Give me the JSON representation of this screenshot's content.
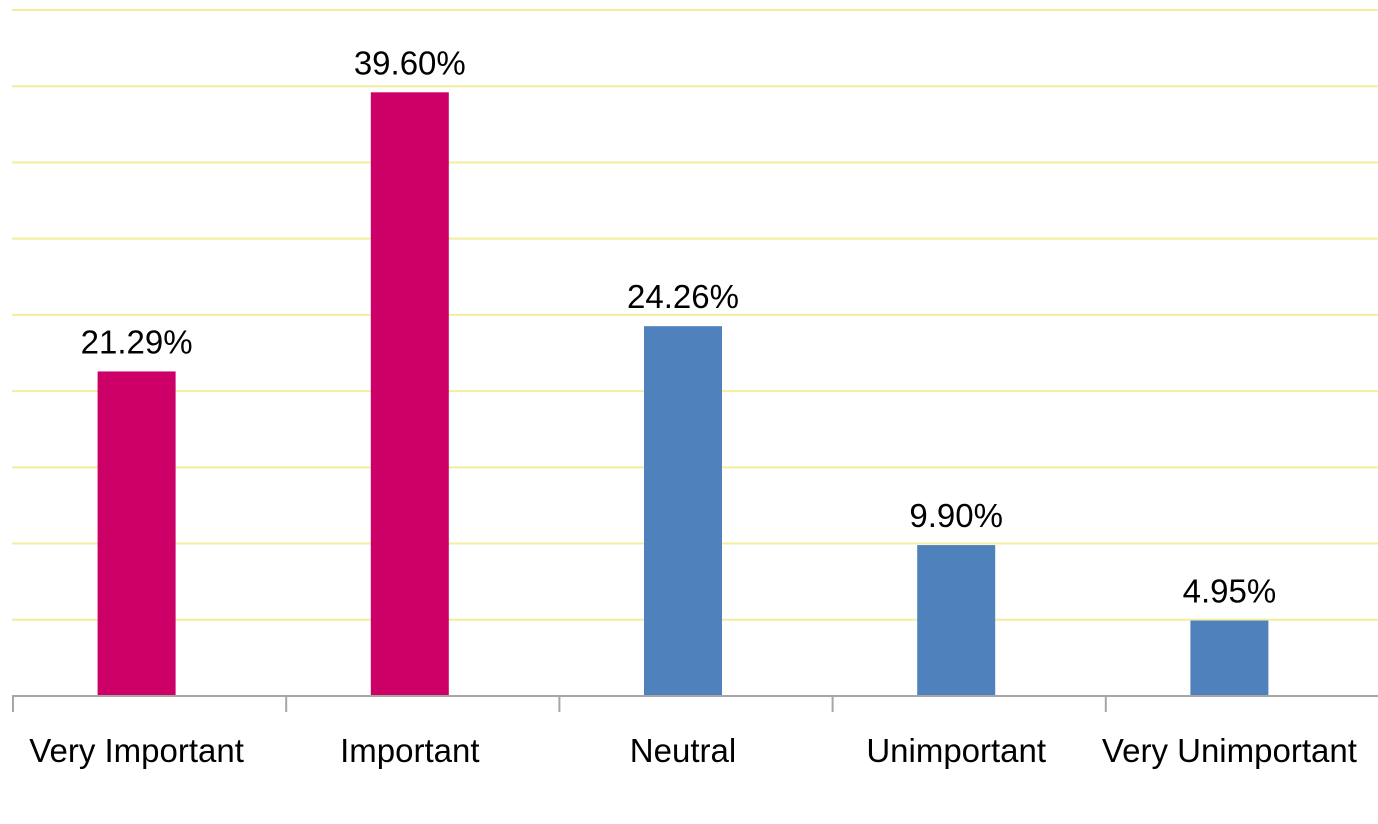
{
  "chart_data": {
    "type": "bar",
    "categories": [
      "Very Important",
      "Important",
      "Neutral",
      "Unimportant",
      "Very Unimportant"
    ],
    "values": [
      21.29,
      39.6,
      24.26,
      9.9,
      4.95
    ],
    "data_labels": [
      "21.29%",
      "39.60%",
      "24.26%",
      "9.90%",
      "4.95%"
    ],
    "title": "",
    "xlabel": "",
    "ylabel": "",
    "ylim": [
      0,
      45
    ],
    "y_axis_visible": false,
    "grid": true,
    "gridline_color": "#f4ee9c",
    "legend": "none",
    "bar_colors": [
      "#cc0066",
      "#cc0066",
      "#4f81bd",
      "#4f81bd",
      "#4f81bd"
    ]
  }
}
